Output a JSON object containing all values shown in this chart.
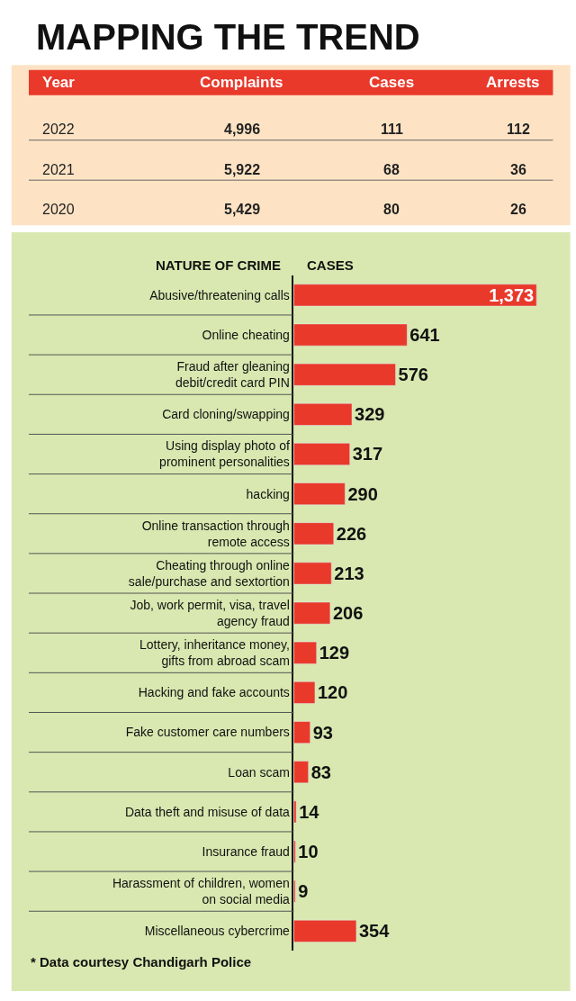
{
  "chart_data": [
    {
      "type": "other",
      "title": "MAPPING THE TREND",
      "xlabel": "Year",
      "categories": [
        "2022",
        "2021",
        "2020"
      ],
      "series": [
        {
          "name": "Complaints",
          "values": [
            4996,
            5922,
            5429
          ],
          "value_labels": [
            "4,996",
            "5,922",
            "5,429"
          ]
        },
        {
          "name": "Cases",
          "values": [
            111,
            68,
            80
          ]
        },
        {
          "name": "Arrests",
          "values": [
            112,
            36,
            26
          ]
        }
      ],
      "data_labels": true
    },
    {
      "type": "bar",
      "orientation": "horizontal",
      "ylabel": "NATURE OF CRIME",
      "xlabel": "CASES",
      "categories": [
        "Abusive/threatening calls",
        "Online cheating",
        "Fraud after gleaning debit/credit card PIN",
        "Card cloning/swapping",
        "Using display photo of prominent personalities",
        "hacking",
        "Online transaction through remote access",
        "Cheating through online sale/purchase and sextortion",
        "Job, work permit, visa, travel agency fraud",
        "Lottery, inheritance money, gifts from abroad scam",
        "Hacking and fake accounts",
        "Fake customer care numbers",
        "Loan scam",
        "Data theft and misuse of data",
        "Insurance fraud",
        "Harassment of children, women on social media",
        "Miscellaneous cybercrime"
      ],
      "values": [
        1373,
        641,
        576,
        329,
        317,
        290,
        226,
        213,
        206,
        129,
        120,
        93,
        83,
        14,
        10,
        9,
        354
      ],
      "color": "#e8392b",
      "data_labels": true,
      "value_labels": [
        "1,373",
        "641",
        "576",
        "329",
        "317",
        "290",
        "226",
        "213",
        "206",
        "129",
        "120",
        "93",
        "83",
        "14",
        "10",
        "9",
        "354"
      ],
      "annotations": [
        "* Data courtesy Chandigarh Police"
      ]
    }
  ]
}
